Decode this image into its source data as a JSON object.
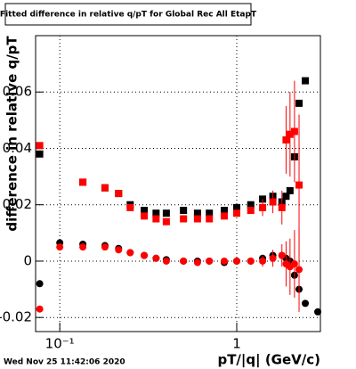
{
  "chart_data": {
    "type": "scatter",
    "title": "Fitted difference in relative q/pT for Global Rec All EtapT",
    "x_label": "pT/|q| (GeV/c)",
    "y_label": "difference in relative q/pT",
    "timestamp": "Wed Nov 25 11:42:06 2020",
    "log_x": true,
    "grid": true,
    "xlim": [
      0.073,
      2.97
    ],
    "ylim": [
      -0.025,
      0.08
    ],
    "xticks": [
      {
        "value": 0.1,
        "label": "10⁻¹"
      },
      1
    ],
    "yticks": [
      -0.02,
      0,
      0.02,
      0.04,
      0.06
    ],
    "x": [
      0.077,
      0.1,
      0.135,
      0.18,
      0.215,
      0.25,
      0.3,
      0.35,
      0.4,
      0.5,
      0.6,
      0.7,
      0.85,
      1.0,
      1.2,
      1.4,
      1.6,
      1.8,
      1.9,
      2.0,
      2.12,
      2.25,
      2.44,
      2.87
    ],
    "series": [
      {
        "color": "#000000",
        "marker": "square",
        "values": [
          0.038,
          null,
          0.028,
          0.026,
          0.024,
          0.02,
          0.018,
          0.017,
          0.017,
          0.018,
          0.017,
          0.017,
          0.018,
          0.019,
          0.02,
          0.022,
          0.023,
          0.021,
          0.023,
          0.025,
          0.037,
          0.056,
          0.064,
          null
        ]
      },
      {
        "color": "#ff0000",
        "marker": "square",
        "values": [
          0.041,
          null,
          0.028,
          0.026,
          0.024,
          0.019,
          0.016,
          0.015,
          0.014,
          0.015,
          0.015,
          0.015,
          0.016,
          0.017,
          0.018,
          0.019,
          0.021,
          0.019,
          0.043,
          0.045,
          0.046,
          0.027,
          null,
          null
        ],
        "errors": [
          null,
          null,
          null,
          null,
          null,
          null,
          null,
          null,
          null,
          null,
          null,
          null,
          null,
          null,
          null,
          0.003,
          0.004,
          0.006,
          0.012,
          0.015,
          0.018,
          0.025,
          null,
          null
        ]
      },
      {
        "color": "#000000",
        "marker": "circle",
        "values": [
          -0.008,
          0.0065,
          0.006,
          0.0055,
          0.0045,
          0.003,
          0.002,
          0.001,
          0.0005,
          0,
          0,
          0,
          -0.0005,
          0,
          0,
          0.001,
          0.002,
          0.002,
          0.001,
          0,
          -0.005,
          -0.01,
          -0.015,
          -0.018
        ]
      },
      {
        "color": "#ff0000",
        "marker": "circle",
        "values": [
          -0.017,
          0.005,
          0.005,
          0.005,
          0.004,
          0.003,
          0.002,
          0.001,
          0,
          0,
          -0.0005,
          0,
          0,
          0,
          0,
          0,
          0.001,
          0.002,
          -0.001,
          -0.002,
          -0.001,
          -0.003,
          null,
          null
        ],
        "errors": [
          null,
          null,
          null,
          null,
          null,
          null,
          null,
          null,
          null,
          null,
          null,
          null,
          null,
          null,
          null,
          0.002,
          0.003,
          0.004,
          0.008,
          0.01,
          0.012,
          0.015,
          null,
          null
        ]
      }
    ]
  }
}
